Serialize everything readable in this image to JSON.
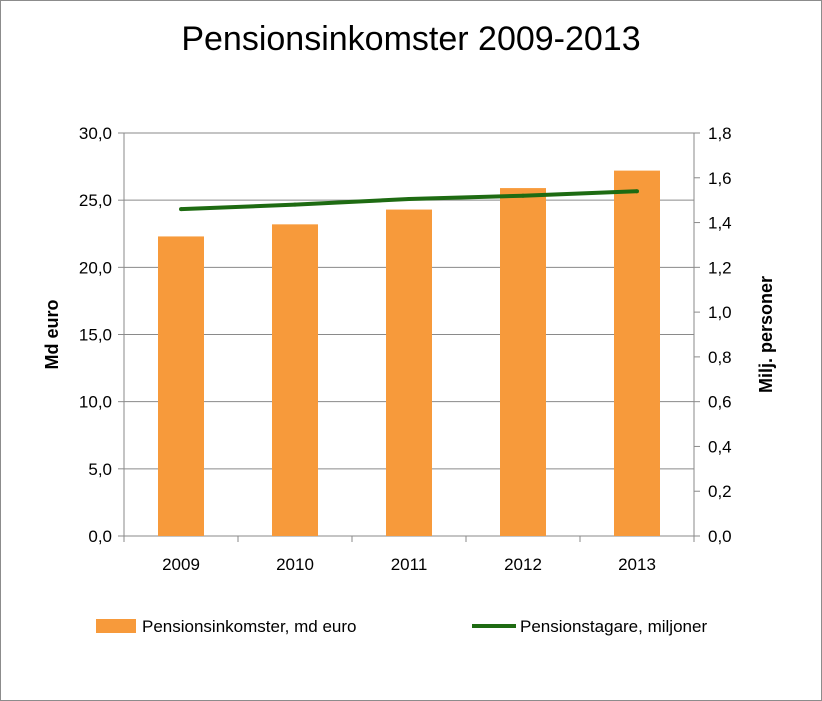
{
  "chart_data": {
    "type": "bar",
    "title": "Pensionsinkomster 2009-2013",
    "categories": [
      "2009",
      "2010",
      "2011",
      "2012",
      "2013"
    ],
    "series": [
      {
        "name": "Pensionsinkomster, md euro",
        "type": "bar",
        "axis": "left",
        "color": "#f79a3b",
        "values": [
          22.3,
          23.2,
          24.3,
          25.9,
          27.2
        ]
      },
      {
        "name": "Pensionstagare, miljoner",
        "type": "line",
        "axis": "right",
        "color": "#1e6b12",
        "values": [
          1.46,
          1.48,
          1.505,
          1.52,
          1.54
        ]
      }
    ],
    "ylabel": "Md euro",
    "ylim": [
      0,
      30
    ],
    "yticks": [
      "0,0",
      "5,0",
      "10,0",
      "15,0",
      "20,0",
      "25,0",
      "30,0"
    ],
    "y2label": "Milj. personer",
    "y2lim": [
      0,
      1.8
    ],
    "y2ticks": [
      "0,0",
      "0,2",
      "0,4",
      "0,6",
      "0,8",
      "1,0",
      "1,2",
      "1,4",
      "1,6",
      "1,8"
    ],
    "grid": true,
    "legend": "bottom"
  }
}
